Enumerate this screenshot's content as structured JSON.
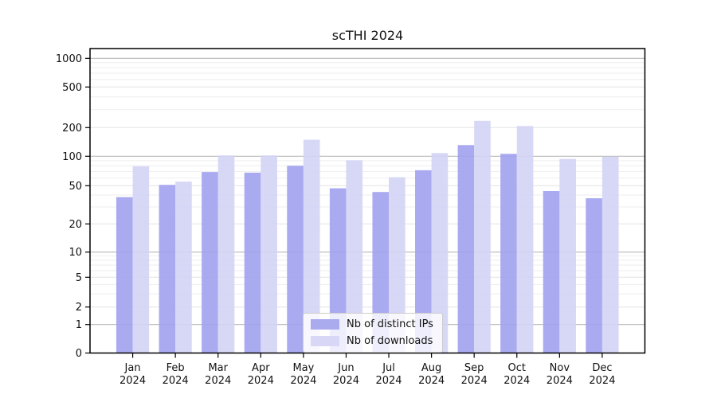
{
  "title": "scTHI 2024",
  "chart_data": {
    "type": "bar",
    "title": "scTHI 2024",
    "categories": [
      "Jan 2024",
      "Feb 2024",
      "Mar 2024",
      "Apr 2024",
      "May 2024",
      "Jun 2024",
      "Jul 2024",
      "Aug 2024",
      "Sep 2024",
      "Oct 2024",
      "Nov 2024",
      "Dec 2024"
    ],
    "months": [
      "Jan",
      "Feb",
      "Mar",
      "Apr",
      "May",
      "Jun",
      "Jul",
      "Aug",
      "Sep",
      "Oct",
      "Nov",
      "Dec"
    ],
    "year": "2024",
    "series": [
      {
        "name": "Nb of distinct IPs",
        "color": "#a1a1ee",
        "values": [
          38,
          51,
          69,
          68,
          80,
          47,
          43,
          72,
          131,
          106,
          44,
          37
        ]
      },
      {
        "name": "Nb of downloads",
        "color": "#d3d3f5",
        "values": [
          79,
          55,
          102,
          102,
          149,
          91,
          61,
          108,
          233,
          207,
          94,
          99
        ]
      }
    ],
    "xlabel": "",
    "ylabel": "",
    "y_axis": {
      "scale": "log-like",
      "ticks": [
        0,
        1,
        2,
        5,
        10,
        20,
        50,
        100,
        200,
        500,
        1000
      ],
      "range": [
        0,
        1300
      ],
      "grid": true
    },
    "legend_position": "lower center inside plot"
  },
  "legend": {
    "items": [
      {
        "label": "Nb of distinct IPs",
        "color": "#aaaaef"
      },
      {
        "label": "Nb of downloads",
        "color": "#d8d8f6"
      }
    ]
  }
}
